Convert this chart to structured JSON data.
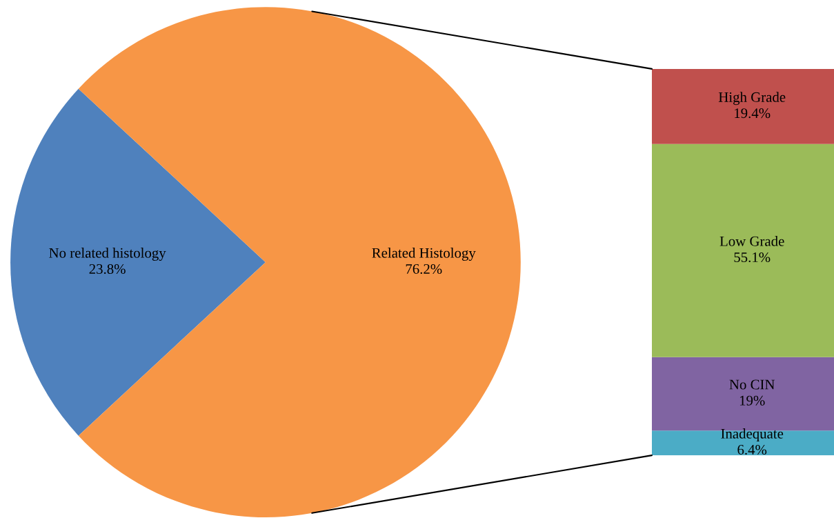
{
  "chart_data": [
    {
      "type": "pie",
      "categories": [
        "No related histology",
        "Related Histology"
      ],
      "values": [
        23.8,
        76.2
      ],
      "colors": [
        "#4f81bd",
        "#f79646"
      ],
      "value_labels": [
        "23.8%",
        "76.2%"
      ]
    },
    {
      "type": "bar",
      "stacked": true,
      "categories": [
        null
      ],
      "series": [
        {
          "name": "Inadequate",
          "color": "#4bacc6",
          "values": [
            6.4
          ],
          "value_labels": [
            "6.4%"
          ]
        },
        {
          "name": "No CIN",
          "color": "#8064a2",
          "values": [
            19
          ],
          "value_labels": [
            "19%"
          ]
        },
        {
          "name": "Low Grade",
          "color": "#9bbb59",
          "values": [
            55.1
          ],
          "value_labels": [
            "55.1%"
          ]
        },
        {
          "name": "High Grade",
          "color": "#c0504d",
          "values": [
            19.4
          ],
          "value_labels": [
            "19.4%"
          ]
        }
      ]
    }
  ]
}
